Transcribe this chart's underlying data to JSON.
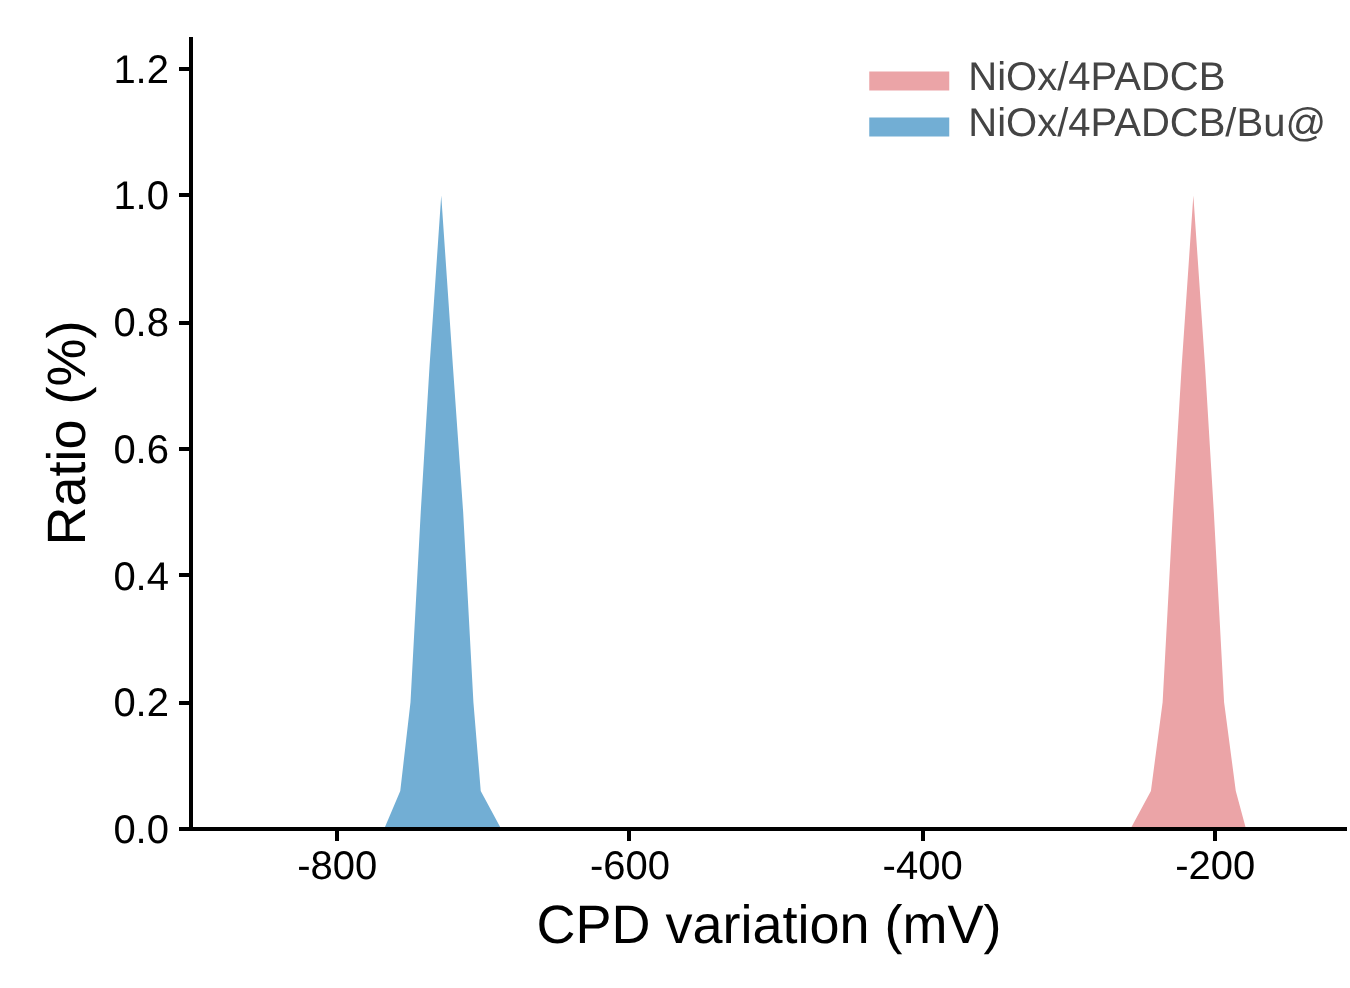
{
  "chart_data": {
    "type": "area",
    "xlabel": "CPD variation (mV)",
    "ylabel": "Ratio (%)",
    "xlim": [
      -900,
      -110
    ],
    "ylim": [
      0,
      1.25
    ],
    "xticks": [
      -800,
      -600,
      -400,
      -200
    ],
    "yticks": [
      {
        "value": 0,
        "label": "0.0"
      },
      0.2,
      0.4,
      0.6,
      0.8,
      {
        "value": 1,
        "label": "1.0"
      },
      1.2
    ],
    "legend": "top right",
    "grid": false,
    "series": [
      {
        "name": "NiOx/4PADCB",
        "color": "#eba4a7",
        "x": [
          -258,
          -244,
          -236,
          -229,
          -223,
          -215,
          -207,
          -201,
          -194,
          -186,
          -179
        ],
        "values": [
          0,
          0.06,
          0.2,
          0.5,
          0.73,
          1.0,
          0.73,
          0.5,
          0.2,
          0.06,
          0
        ]
      },
      {
        "name": "NiOx/4PADCB/Bu@",
        "color": "#72aed4",
        "x": [
          -768,
          -757,
          -750,
          -743,
          -737,
          -729,
          -721,
          -714,
          -707,
          -702,
          -688
        ],
        "values": [
          0,
          0.06,
          0.2,
          0.5,
          0.73,
          1.0,
          0.73,
          0.5,
          0.2,
          0.06,
          0
        ]
      }
    ]
  }
}
